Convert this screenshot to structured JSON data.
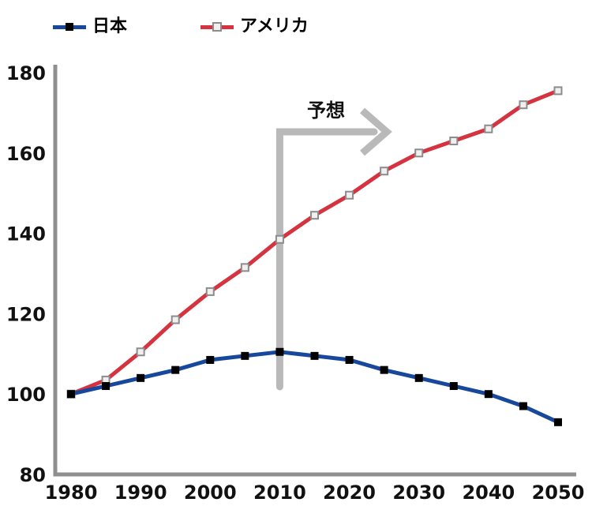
{
  "legend": {
    "items": [
      {
        "label": "日本",
        "color": "#17489c",
        "marker": "filled-square"
      },
      {
        "label": "アメリカ",
        "color": "#d4333f",
        "marker": "open-square"
      }
    ]
  },
  "chart_data": {
    "type": "line",
    "title": "",
    "xlabel": "",
    "ylabel": "",
    "x": [
      1980,
      1985,
      1990,
      1995,
      2000,
      2005,
      2010,
      2015,
      2020,
      2025,
      2030,
      2035,
      2040,
      2045,
      2050
    ],
    "series": [
      {
        "name": "日本",
        "color": "#17489c",
        "marker": {
          "shape": "square",
          "fill": "#000000",
          "stroke": "none",
          "size": 10
        },
        "values": [
          100,
          102,
          104,
          106,
          108.5,
          109.5,
          110.5,
          109.5,
          108.5,
          106,
          104,
          102,
          100,
          97,
          93
        ]
      },
      {
        "name": "アメリカ",
        "color": "#d4333f",
        "marker": {
          "shape": "square",
          "fill": "#f1f0ee",
          "stroke": "#8c8c8c",
          "size": 9
        },
        "values": [
          100,
          103.5,
          110.5,
          118.5,
          125.5,
          131.5,
          138.5,
          144.5,
          149.5,
          155.5,
          160,
          163,
          166,
          172,
          175.5
        ]
      }
    ],
    "xlim": [
      1980,
      2050
    ],
    "ylim": [
      80,
      180
    ],
    "xticks": [
      1980,
      1990,
      2000,
      2010,
      2020,
      2030,
      2040,
      2050
    ],
    "yticks": [
      180,
      160,
      140,
      120,
      100,
      80
    ],
    "grid": false,
    "legend_position": "top",
    "axis_color": "#8f8f8f",
    "annotation": {
      "text": "予想",
      "at_year": 2010,
      "direction": "right",
      "color": "#b9b9b9"
    }
  }
}
